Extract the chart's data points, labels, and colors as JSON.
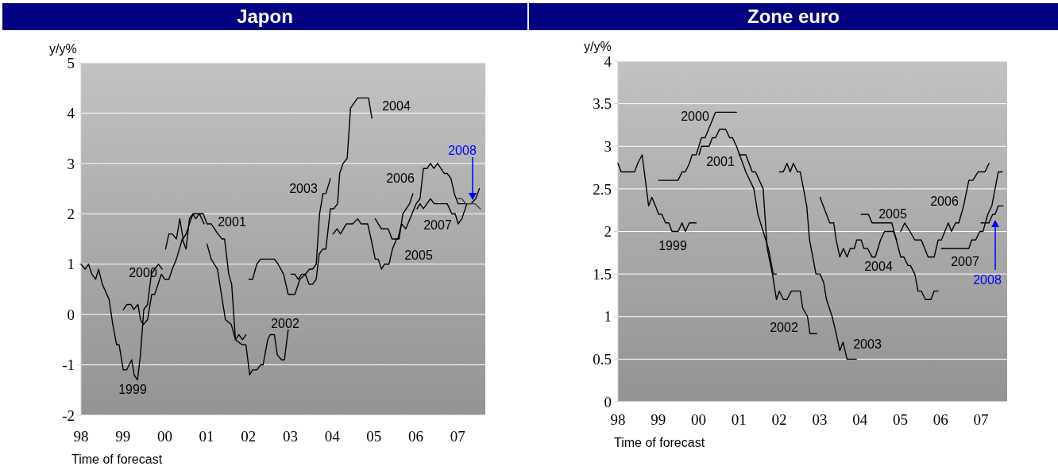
{
  "chart_data": [
    {
      "type": "line",
      "title": "Japon",
      "ylabel": "y/y%",
      "xlabel": "Time of forecast",
      "xlim": [
        1998,
        2007.66
      ],
      "xticks": [
        {
          "value": 1998,
          "label": "98"
        },
        {
          "value": 1999,
          "label": "99"
        },
        {
          "value": 2000,
          "label": "00"
        },
        {
          "value": 2001,
          "label": "01"
        },
        {
          "value": 2002,
          "label": "02"
        },
        {
          "value": 2003,
          "label": "03"
        },
        {
          "value": 2004,
          "label": "04"
        },
        {
          "value": 2005,
          "label": "05"
        },
        {
          "value": 2006,
          "label": "06"
        },
        {
          "value": 2007,
          "label": "07"
        }
      ],
      "ylim": [
        -2,
        5
      ],
      "yticks": [
        -2,
        -1,
        0,
        1,
        2,
        3,
        4,
        5
      ],
      "grid": "y",
      "series": [
        {
          "name": "1999",
          "color": "#000000",
          "x": [
            1998.0,
            1998.1,
            1998.18,
            1998.26,
            1998.35,
            1998.42,
            1998.51,
            1998.67,
            1998.76,
            1998.85,
            1998.91,
            1999.01,
            1999.09,
            1999.21,
            1999.27,
            1999.35,
            1999.42,
            1999.5,
            1999.59,
            1999.68,
            1999.76,
            1999.85,
            1999.94
          ],
          "values": [
            1.0,
            0.9,
            1.0,
            0.8,
            0.7,
            0.9,
            0.6,
            0.3,
            -0.2,
            -0.6,
            -0.6,
            -1.1,
            -1.1,
            -0.9,
            -1.2,
            -1.3,
            -0.8,
            0.1,
            0.2,
            0.8,
            0.9,
            1.0,
            0.9
          ]
        },
        {
          "name": "2000",
          "color": "#000000",
          "x": [
            1999.01,
            1999.1,
            1999.19,
            1999.26,
            1999.36,
            1999.42,
            1999.49,
            1999.59,
            1999.69,
            1999.76,
            1999.92,
            2000.0,
            2000.1,
            2000.18,
            2000.28,
            2000.42,
            2000.51,
            2000.59,
            2000.67,
            2000.74,
            2000.83,
            2000.94
          ],
          "values": [
            0.1,
            0.2,
            0.2,
            0.1,
            0.2,
            -0.1,
            -0.2,
            -0.1,
            0.4,
            0.4,
            0.8,
            0.7,
            0.7,
            0.9,
            1.1,
            1.5,
            1.3,
            1.9,
            2.0,
            1.9,
            2.0,
            1.8
          ]
        },
        {
          "name": "2001",
          "color": "#000000",
          "x": [
            2000.02,
            2000.1,
            2000.18,
            2000.28,
            2000.36,
            2000.44,
            2000.51,
            2000.63,
            2000.68,
            2000.92,
            2001.01,
            2001.11,
            2001.27,
            2001.37,
            2001.43,
            2001.53,
            2001.6,
            2001.69,
            2001.77,
            2001.86,
            2001.94
          ],
          "values": [
            1.3,
            1.6,
            1.6,
            1.5,
            1.9,
            1.5,
            1.6,
            1.9,
            2.0,
            2.0,
            1.8,
            1.8,
            1.6,
            1.5,
            1.5,
            0.8,
            0.6,
            -0.5,
            -0.4,
            -0.5,
            -0.4
          ]
        },
        {
          "name": "2002",
          "color": "#000000",
          "x": [
            2001.01,
            2001.11,
            2001.26,
            2001.45,
            2001.59,
            2001.69,
            2001.85,
            2001.94,
            2002.03,
            2002.1,
            2002.2,
            2002.29,
            2002.35,
            2002.46,
            2002.52,
            2002.62,
            2002.69,
            2002.79,
            2002.86,
            2002.95
          ],
          "values": [
            1.4,
            1.1,
            0.9,
            -0.1,
            -0.2,
            -0.5,
            -0.6,
            -0.6,
            -1.2,
            -1.1,
            -1.1,
            -1.0,
            -1.0,
            -0.5,
            -0.4,
            -0.4,
            -0.8,
            -0.9,
            -0.9,
            -0.3
          ]
        },
        {
          "name": "2003",
          "color": "#000000",
          "x": [
            2002.01,
            2002.1,
            2002.2,
            2002.29,
            2002.62,
            2002.71,
            2002.84,
            2002.95,
            2003.11,
            2003.23,
            2003.36,
            2003.46,
            2003.53,
            2003.62,
            2003.7,
            2003.78,
            2003.85,
            2003.96
          ],
          "values": [
            0.7,
            0.7,
            1.0,
            1.1,
            1.1,
            1.0,
            0.8,
            0.4,
            0.4,
            0.7,
            0.8,
            0.9,
            0.9,
            1.0,
            2.0,
            2.4,
            2.4,
            2.7
          ]
        },
        {
          "name": "2004",
          "color": "#000000",
          "x": [
            2003.02,
            2003.11,
            2003.19,
            2003.27,
            2003.36,
            2003.45,
            2003.53,
            2003.62,
            2003.69,
            2003.78,
            2003.85,
            2003.96,
            2004.04,
            2004.13,
            2004.18,
            2004.26,
            2004.36,
            2004.44,
            2004.61,
            2004.87,
            2004.95
          ],
          "values": [
            0.8,
            0.8,
            0.7,
            0.8,
            0.8,
            0.6,
            0.6,
            0.7,
            1.2,
            1.3,
            1.3,
            2.1,
            2.1,
            2.2,
            2.8,
            3.0,
            3.1,
            4.1,
            4.3,
            4.3,
            3.9
          ]
        },
        {
          "name": "2005",
          "color": "#000000",
          "x": [
            2004.02,
            2004.12,
            2004.2,
            2004.34,
            2004.49,
            2004.61,
            2004.69,
            2004.85,
            2004.93,
            2005.03,
            2005.1,
            2005.18,
            2005.25,
            2005.36,
            2005.44,
            2005.54,
            2005.6,
            2005.69,
            2005.85,
            2005.93
          ],
          "values": [
            1.6,
            1.7,
            1.6,
            1.8,
            1.8,
            1.9,
            1.8,
            1.8,
            1.5,
            1.1,
            1.1,
            0.9,
            1.0,
            1.0,
            1.3,
            1.5,
            1.5,
            2.0,
            2.2,
            2.4
          ]
        },
        {
          "name": "2006",
          "color": "#000000",
          "x": [
            2005.03,
            2005.18,
            2005.34,
            2005.43,
            2005.57,
            2005.66,
            2005.76,
            2006.01,
            2006.1,
            2006.18,
            2006.27,
            2006.35,
            2006.43,
            2006.52,
            2006.68,
            2006.75,
            2006.84,
            2006.92,
            2007.01,
            2007.19
          ],
          "values": [
            1.9,
            1.7,
            1.7,
            1.5,
            1.5,
            1.8,
            1.7,
            2.2,
            2.3,
            2.9,
            2.9,
            3.0,
            2.9,
            3.0,
            2.8,
            2.8,
            2.7,
            2.4,
            2.2,
            2.2
          ]
        },
        {
          "name": "2007",
          "color": "#000000",
          "x": [
            2006.03,
            2006.1,
            2006.18,
            2006.35,
            2006.44,
            2006.75,
            2006.86,
            2006.94,
            2007.01,
            2007.1,
            2007.22,
            2007.32,
            2007.43,
            2007.52
          ],
          "values": [
            2.1,
            2.2,
            2.1,
            2.3,
            2.2,
            2.2,
            2.0,
            2.0,
            1.8,
            1.9,
            2.2,
            2.2,
            2.3,
            2.5
          ]
        },
        {
          "name": "2008",
          "color": "#404040",
          "x": [
            2007.0,
            2007.1,
            2007.19,
            2007.29,
            2007.35,
            2007.41,
            2007.54
          ],
          "values": [
            2.3,
            2.3,
            2.2,
            2.2,
            2.2,
            2.2,
            2.1
          ]
        }
      ]
    },
    {
      "type": "line",
      "title": "Zone euro",
      "ylabel": "y/y%",
      "xlabel": "Time of forecast",
      "xlim": [
        1998,
        2007.65
      ],
      "xticks": [
        {
          "value": 1998,
          "label": "98"
        },
        {
          "value": 1999,
          "label": "99"
        },
        {
          "value": 2000,
          "label": "00"
        },
        {
          "value": 2001,
          "label": "01"
        },
        {
          "value": 2002,
          "label": "02"
        },
        {
          "value": 2003,
          "label": "03"
        },
        {
          "value": 2004,
          "label": "04"
        },
        {
          "value": 2005,
          "label": "05"
        },
        {
          "value": 2006,
          "label": "06"
        },
        {
          "value": 2007,
          "label": "07"
        }
      ],
      "ylim": [
        0,
        4
      ],
      "yticks": [
        0,
        0.5,
        1,
        1.5,
        2,
        2.5,
        3,
        3.5,
        4
      ],
      "grid": "y",
      "series": [
        {
          "name": "1999",
          "color": "#000000",
          "x": [
            1998.0,
            1998.08,
            1998.41,
            1998.49,
            1998.6,
            1998.68,
            1998.76,
            1998.84,
            1998.93,
            1999.01,
            1999.09,
            1999.18,
            1999.26,
            1999.34,
            1999.49,
            1999.59,
            1999.67,
            1999.77,
            1999.94
          ],
          "values": [
            2.8,
            2.7,
            2.7,
            2.8,
            2.9,
            2.6,
            2.3,
            2.4,
            2.3,
            2.2,
            2.2,
            2.1,
            2.1,
            2.0,
            2.0,
            2.1,
            2.0,
            2.1,
            2.1
          ]
        },
        {
          "name": "2000",
          "color": "#000000",
          "x": [
            1999.01,
            1999.49,
            1999.59,
            1999.67,
            1999.77,
            1999.84,
            1999.94,
            2000.07,
            2000.16,
            2000.42,
            2000.94
          ],
          "values": [
            2.6,
            2.6,
            2.7,
            2.7,
            2.8,
            2.9,
            2.9,
            3.1,
            3.1,
            3.4,
            3.4
          ]
        },
        {
          "name": "2001",
          "color": "#000000",
          "x": [
            2000.01,
            2000.07,
            2000.26,
            2000.34,
            2000.42,
            2000.52,
            2000.67,
            2000.77,
            2000.84,
            2000.94,
            2001.17,
            2001.37,
            2001.47,
            2001.6,
            2001.73,
            2001.85,
            2001.93
          ],
          "values": [
            2.9,
            3.0,
            3.0,
            3.1,
            3.1,
            3.2,
            3.2,
            3.1,
            3.1,
            3.0,
            2.7,
            2.5,
            2.2,
            2.0,
            1.8,
            1.5,
            1.5
          ]
        },
        {
          "name": "2002",
          "color": "#000000",
          "x": [
            2001.0,
            2001.17,
            2001.33,
            2001.41,
            2001.6,
            2001.7,
            2001.83,
            2001.93,
            2002.0,
            2002.1,
            2002.19,
            2002.3,
            2002.52,
            2002.58,
            2002.7,
            2002.76,
            2002.93
          ],
          "values": [
            2.9,
            2.9,
            2.7,
            2.7,
            2.5,
            1.8,
            1.5,
            1.2,
            1.3,
            1.2,
            1.2,
            1.3,
            1.3,
            1.1,
            1.0,
            0.8,
            0.8
          ]
        },
        {
          "name": "2003",
          "color": "#000000",
          "x": [
            2002.01,
            2002.1,
            2002.19,
            2002.27,
            2002.35,
            2002.45,
            2002.52,
            2002.68,
            2002.75,
            2002.91,
            2003.01,
            2003.1,
            2003.17,
            2003.31,
            2003.41,
            2003.5,
            2003.58,
            2003.68,
            2003.91
          ],
          "values": [
            2.7,
            2.7,
            2.8,
            2.7,
            2.8,
            2.7,
            2.7,
            2.3,
            1.9,
            1.5,
            1.5,
            1.4,
            1.2,
            1.0,
            0.8,
            0.6,
            0.7,
            0.5,
            0.5
          ]
        },
        {
          "name": "2004",
          "color": "#000000",
          "x": [
            2003.01,
            2003.17,
            2003.25,
            2003.35,
            2003.41,
            2003.5,
            2003.59,
            2003.68,
            2003.76,
            2003.86,
            2003.92,
            2004.03,
            2004.1,
            2004.19,
            2004.3,
            2004.38,
            2004.51,
            2004.61,
            2004.83,
            2004.91
          ],
          "values": [
            2.4,
            2.2,
            2.1,
            2.1,
            1.9,
            1.7,
            1.8,
            1.7,
            1.8,
            1.8,
            1.9,
            1.9,
            1.8,
            1.8,
            1.7,
            1.7,
            1.9,
            2.0,
            2.0,
            1.9
          ]
        },
        {
          "name": "2005",
          "color": "#000000",
          "x": [
            2004.03,
            2004.21,
            2004.3,
            2004.79,
            2005.01,
            2005.09,
            2005.19,
            2005.25,
            2005.36,
            2005.44,
            2005.52,
            2005.62,
            2005.76,
            2005.84,
            2005.94
          ],
          "values": [
            2.2,
            2.2,
            2.1,
            2.1,
            1.7,
            1.7,
            1.6,
            1.6,
            1.5,
            1.3,
            1.3,
            1.2,
            1.2,
            1.3,
            1.3
          ]
        },
        {
          "name": "2006",
          "color": "#000000",
          "x": [
            2005.01,
            2005.11,
            2005.24,
            2005.36,
            2005.52,
            2005.69,
            2005.84,
            2005.94,
            2006.02,
            2006.19,
            2006.27,
            2006.37,
            2006.45,
            2006.57,
            2006.7,
            2006.8,
            2006.93,
            2007.1,
            2007.2
          ],
          "values": [
            2.0,
            2.1,
            2.0,
            1.9,
            1.9,
            1.7,
            1.7,
            1.9,
            1.9,
            2.1,
            2.0,
            2.1,
            2.1,
            2.3,
            2.6,
            2.6,
            2.7,
            2.7,
            2.8
          ]
        },
        {
          "name": "2007",
          "color": "#000000",
          "x": [
            2006.02,
            2006.7,
            2006.77,
            2006.87,
            2006.97,
            2007.05,
            2007.17,
            2007.27,
            2007.35,
            2007.43,
            2007.53
          ],
          "values": [
            1.8,
            1.8,
            1.9,
            1.9,
            2.0,
            2.0,
            2.2,
            2.3,
            2.5,
            2.7,
            2.7
          ]
        },
        {
          "name": "2008",
          "color": "#000000",
          "x": [
            2007.0,
            2007.2,
            2007.29,
            2007.35,
            2007.43,
            2007.55
          ],
          "values": [
            2.1,
            2.1,
            2.2,
            2.2,
            2.3,
            2.3
          ]
        }
      ]
    }
  ]
}
